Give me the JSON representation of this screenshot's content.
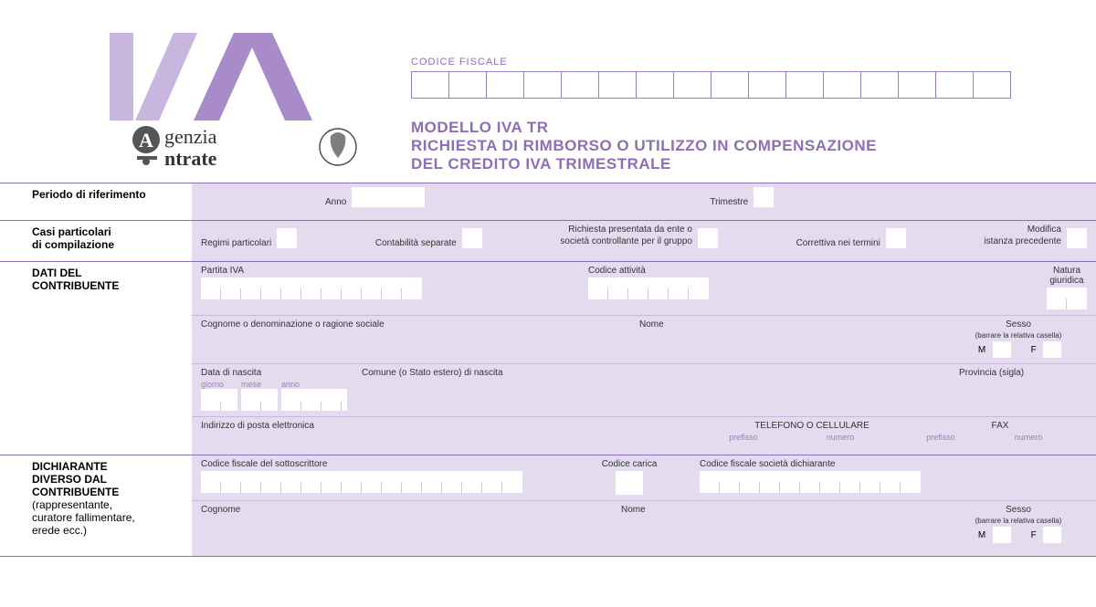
{
  "colors": {
    "accent": "#8d6fb5",
    "panel": "#e4dbef",
    "tick": "#c8b8dc"
  },
  "header": {
    "logo_text": "IVA",
    "agency_line1": "genzia",
    "agency_line2": "ntrate",
    "cf_label": "CODICE FISCALE",
    "cf_cells": 16,
    "title_l1": "MODELLO IVA TR",
    "title_l2": "RICHIESTA DI RIMBORSO O UTILIZZO IN COMPENSAZIONE",
    "title_l3": "DEL CREDITO IVA TRIMESTRALE"
  },
  "sections": {
    "periodo": {
      "label": "Periodo di riferimento",
      "anno": "Anno",
      "trimestre": "Trimestre"
    },
    "casi": {
      "label1": "Casi particolari",
      "label2": "di compilazione",
      "regimi": "Regimi particolari",
      "contab": "Contabilità separate",
      "richiesta1": "Richiesta presentata da ente o",
      "richiesta2": "società controllante per il gruppo",
      "correttiva": "Correttiva nei termini",
      "modifica1": "Modifica",
      "modifica2": "istanza precedente"
    },
    "contribuente": {
      "label1": "DATI DEL",
      "label2": "CONTRIBUENTE",
      "piva": "Partita IVA",
      "piva_cells": 11,
      "codatt": "Codice attività",
      "codatt_cells": 6,
      "natura1": "Natura",
      "natura2": "giuridica",
      "cognome": "Cognome o denominazione  o ragione sociale",
      "nome": "Nome",
      "sesso": "Sesso",
      "sesso_hint": "(barrare la relativa casella)",
      "m": "M",
      "f": "F",
      "dnascita": "Data di nascita",
      "giorno": "giorno",
      "mese": "mese",
      "anno": "anno",
      "comune": "Comune (o Stato estero) di nascita",
      "provincia": "Provincia (sigla)",
      "email": "Indirizzo di posta elettronica",
      "tel": "TELEFONO O CELLULARE",
      "fax": "FAX",
      "prefisso": "prefisso",
      "numero": "numero"
    },
    "dichiarante": {
      "label1": "DICHIARANTE",
      "label2": "DIVERSO DAL",
      "label3": "CONTRIBUENTE",
      "sub1": "(rappresentante,",
      "sub2": "curatore fallimentare,",
      "sub3": "erede ecc.)",
      "cf_sott": "Codice fiscale del sottoscrittore",
      "cf_cells": 16,
      "codcarica": "Codice carica",
      "cf_soc": "Codice fiscale società dichiarante",
      "cf_soc_cells": 11,
      "cognome": "Cognome",
      "nome": "Nome",
      "sesso": "Sesso",
      "sesso_hint": "(barrare la relativa casella)",
      "m": "M",
      "f": "F"
    }
  }
}
